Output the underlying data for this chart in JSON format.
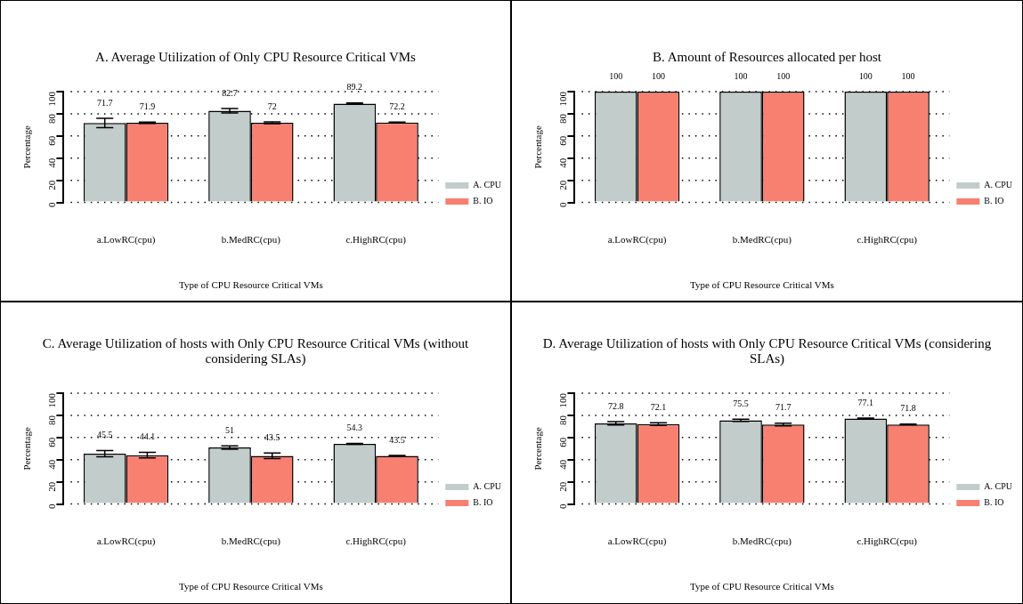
{
  "chart_data": [
    {
      "type": "bar",
      "title": "A. Average Utilization of Only CPU Resource Critical VMs",
      "xlabel": "Type of CPU Resource Critical VMs",
      "ylabel": "Percentage",
      "categories": [
        "a.LowRC(cpu)",
        "b.MedRC(cpu)",
        "c.HighRC(cpu)"
      ],
      "series": [
        {
          "name": "A. CPU",
          "color": "#c1cccb",
          "values": [
            71.7,
            82.7,
            89.2
          ],
          "errors": [
            4.2,
            2,
            0.5
          ]
        },
        {
          "name": "B. IO",
          "color": "#f88071",
          "values": [
            71.9,
            72,
            72.2
          ],
          "errors": [
            0.6,
            0.8,
            0.3
          ]
        }
      ],
      "ylim": [
        0,
        100
      ],
      "yticks": [
        0,
        20,
        40,
        60,
        80,
        100
      ],
      "grid": "y",
      "legend": "right",
      "data_labels": true
    },
    {
      "type": "bar",
      "title": "B. Amount of Resources allocated per host",
      "xlabel": "Type of CPU Resource Critical VMs",
      "ylabel": "Percentage",
      "categories": [
        "a.LowRC(cpu)",
        "b.MedRC(cpu)",
        "c.HighRC(cpu)"
      ],
      "series": [
        {
          "name": "A. CPU",
          "color": "#c1cccb",
          "values": [
            100,
            100,
            100
          ]
        },
        {
          "name": "B. IO",
          "color": "#f88071",
          "values": [
            100,
            100,
            100
          ]
        }
      ],
      "ylim": [
        0,
        100
      ],
      "yticks": [
        0,
        20,
        40,
        60,
        80,
        100
      ],
      "grid": "y",
      "legend": "right",
      "data_labels": true
    },
    {
      "type": "bar",
      "title": "C. Average Utilization of  hosts with Only CPU Resource Critical VMs (without considering SLAs)",
      "xlabel": "Type of CPU Resource Critical VMs",
      "ylabel": "Percentage",
      "categories": [
        "a.LowRC(cpu)",
        "b.MedRC(cpu)",
        "c.HighRC(cpu)"
      ],
      "series": [
        {
          "name": "A. CPU",
          "color": "#c1cccb",
          "values": [
            45.5,
            51,
            54.3
          ],
          "errors": [
            2.8,
            1.5,
            0.4
          ]
        },
        {
          "name": "B. IO",
          "color": "#f88071",
          "values": [
            44.1,
            43.5,
            43.5
          ],
          "errors": [
            2.5,
            2.5,
            0.4
          ]
        }
      ],
      "ylim": [
        0,
        100
      ],
      "yticks": [
        0,
        20,
        40,
        60,
        80,
        100
      ],
      "grid": "y",
      "legend": "right",
      "data_labels": true
    },
    {
      "type": "bar",
      "title": "D. Average Utilization of  hosts with Only CPU Resource Critical VMs (considering SLAs)",
      "xlabel": "Type of CPU Resource Critical VMs",
      "ylabel": "Percentage",
      "categories": [
        "a.LowRC(cpu)",
        "b.MedRC(cpu)",
        "c.HighRC(cpu)"
      ],
      "series": [
        {
          "name": "A. CPU",
          "color": "#c1cccb",
          "values": [
            72.8,
            75.5,
            77.1
          ],
          "errors": [
            1.5,
            1,
            0.5
          ]
        },
        {
          "name": "B. IO",
          "color": "#f88071",
          "values": [
            72.1,
            71.7,
            71.8
          ],
          "errors": [
            1.2,
            1.2,
            0.3
          ]
        }
      ],
      "ylim": [
        0,
        100
      ],
      "yticks": [
        0,
        20,
        40,
        60,
        80,
        100
      ],
      "grid": "y",
      "legend": "right",
      "data_labels": true
    }
  ]
}
